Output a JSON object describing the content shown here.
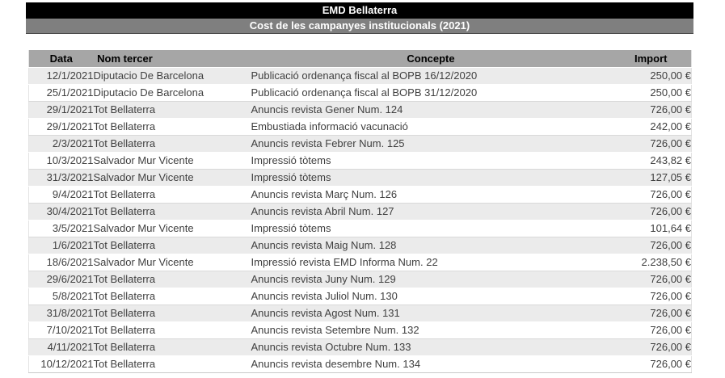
{
  "app": {
    "title": "EMD Bellaterra",
    "subtitle": "Cost de les campanyes institucionals (2021)"
  },
  "table": {
    "columns": {
      "data": "Data",
      "nom_tercer": "Nom tercer",
      "concepte": "Concepte",
      "import": "Import"
    },
    "rows": [
      {
        "data": "12/1/2021",
        "nom_tercer": "Diputacio De Barcelona",
        "concepte": "Publicació ordenança fiscal al BOPB 16/12/2020",
        "import": "250,00 €"
      },
      {
        "data": "25/1/2021",
        "nom_tercer": "Diputacio De Barcelona",
        "concepte": "Publicació ordenança fiscal al BOPB 31/12/2020",
        "import": "250,00 €"
      },
      {
        "data": "29/1/2021",
        "nom_tercer": "Tot Bellaterra",
        "concepte": "Anuncis revista Gener Num. 124",
        "import": "726,00 €"
      },
      {
        "data": "29/1/2021",
        "nom_tercer": "Tot Bellaterra",
        "concepte": "Embustiada informació vacunació",
        "import": "242,00 €"
      },
      {
        "data": "2/3/2021",
        "nom_tercer": "Tot Bellaterra",
        "concepte": "Anuncis revista Febrer Num. 125",
        "import": "726,00 €"
      },
      {
        "data": "10/3/2021",
        "nom_tercer": "Salvador Mur Vicente",
        "concepte": "Impressió tòtems",
        "import": "243,82 €"
      },
      {
        "data": "31/3/2021",
        "nom_tercer": "Salvador Mur Vicente",
        "concepte": "Impressió tòtems",
        "import": "127,05 €"
      },
      {
        "data": "9/4/2021",
        "nom_tercer": "Tot Bellaterra",
        "concepte": "Anuncis revista Març Num. 126",
        "import": "726,00 €"
      },
      {
        "data": "30/4/2021",
        "nom_tercer": "Tot Bellaterra",
        "concepte": "Anuncis revista Abril Num. 127",
        "import": "726,00 €"
      },
      {
        "data": "3/5/2021",
        "nom_tercer": "Salvador Mur Vicente",
        "concepte": "Impressió tòtems",
        "import": "101,64 €"
      },
      {
        "data": "1/6/2021",
        "nom_tercer": "Tot Bellaterra",
        "concepte": "Anuncis revista Maig Num. 128",
        "import": "726,00 €"
      },
      {
        "data": "18/6/2021",
        "nom_tercer": "Salvador Mur Vicente",
        "concepte": "Impressió revista EMD Informa Num. 22",
        "import": "2.238,50 €"
      },
      {
        "data": "29/6/2021",
        "nom_tercer": "Tot Bellaterra",
        "concepte": "Anuncis revista Juny Num. 129",
        "import": "726,00 €"
      },
      {
        "data": "5/8/2021",
        "nom_tercer": "Tot Bellaterra",
        "concepte": "Anuncis revista Juliol Num. 130",
        "import": "726,00 €"
      },
      {
        "data": "31/8/2021",
        "nom_tercer": "Tot Bellaterra",
        "concepte": "Anuncis revista Agost Num. 131",
        "import": "726,00 €"
      },
      {
        "data": "7/10/2021",
        "nom_tercer": "Tot Bellaterra",
        "concepte": "Anuncis revista Setembre Num. 132",
        "import": "726,00 €"
      },
      {
        "data": "4/11/2021",
        "nom_tercer": "Tot Bellaterra",
        "concepte": "Anuncis revista Octubre Num. 133",
        "import": "726,00 €"
      },
      {
        "data": "10/12/2021",
        "nom_tercer": "Tot Bellaterra",
        "concepte": "Anuncis revista desembre Num. 134",
        "import": "726,00 €"
      }
    ]
  },
  "colors": {
    "title_bar_bg": "#000000",
    "title_bar_text": "#ffffff",
    "subtitle_bar_bg": "#7f7f7f",
    "subtitle_bar_text": "#ffffff",
    "column_header_bg": "#a6a6a6",
    "column_header_text": "#000000",
    "row_stripe_bg": "#ebebeb",
    "row_plain_bg": "#ffffff",
    "row_text": "#404040"
  }
}
